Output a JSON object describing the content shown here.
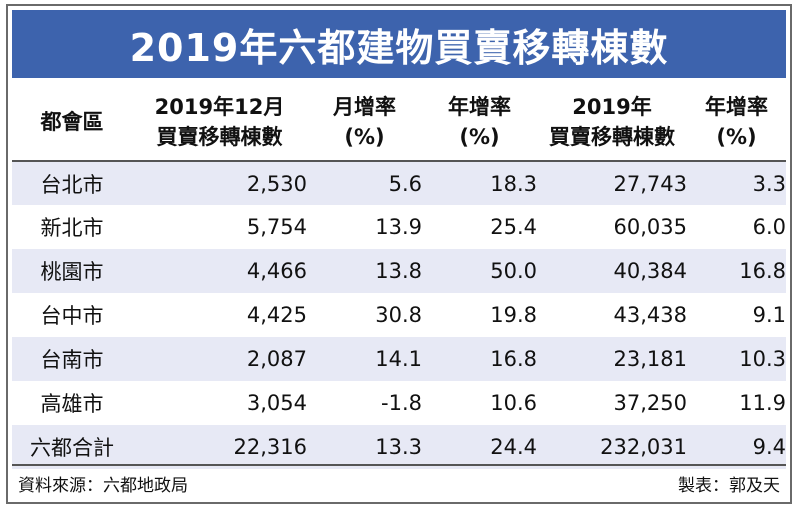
{
  "chart_data": {
    "type": "table",
    "title": "2019年六都建物買賣移轉棟數",
    "columns": [
      {
        "line1": "都會區",
        "line2": ""
      },
      {
        "line1": "2019年12月",
        "line2": "買賣移轉棟數"
      },
      {
        "line1": "月增率",
        "line2": "(%)"
      },
      {
        "line1": "年增率",
        "line2": "(%)"
      },
      {
        "line1": "2019年",
        "line2": "買賣移轉棟數"
      },
      {
        "line1": "年增率",
        "line2": "(%)"
      }
    ],
    "rows": [
      {
        "city": "台北市",
        "dec_transfers": "2,530",
        "mom_pct": "5.6",
        "dec_yoy_pct": "18.3",
        "year_transfers": "27,743",
        "year_yoy_pct": "3.3"
      },
      {
        "city": "新北市",
        "dec_transfers": "5,754",
        "mom_pct": "13.9",
        "dec_yoy_pct": "25.4",
        "year_transfers": "60,035",
        "year_yoy_pct": "6.0"
      },
      {
        "city": "桃園市",
        "dec_transfers": "4,466",
        "mom_pct": "13.8",
        "dec_yoy_pct": "50.0",
        "year_transfers": "40,384",
        "year_yoy_pct": "16.8"
      },
      {
        "city": "台中市",
        "dec_transfers": "4,425",
        "mom_pct": "30.8",
        "dec_yoy_pct": "19.8",
        "year_transfers": "43,438",
        "year_yoy_pct": "9.1"
      },
      {
        "city": "台南市",
        "dec_transfers": "2,087",
        "mom_pct": "14.1",
        "dec_yoy_pct": "16.8",
        "year_transfers": "23,181",
        "year_yoy_pct": "10.3"
      },
      {
        "city": "高雄市",
        "dec_transfers": "3,054",
        "mom_pct": "-1.8",
        "dec_yoy_pct": "10.6",
        "year_transfers": "37,250",
        "year_yoy_pct": "11.9"
      },
      {
        "city": "六都合計",
        "dec_transfers": "22,316",
        "mom_pct": "13.3",
        "dec_yoy_pct": "24.4",
        "year_transfers": "232,031",
        "year_yoy_pct": "9.4"
      }
    ]
  },
  "footer": {
    "source": "資料來源：六都地政局",
    "credit": "製表：郭及天"
  },
  "colors": {
    "title_bg": "#3d63ad",
    "stripe": "#e7e9f5"
  }
}
